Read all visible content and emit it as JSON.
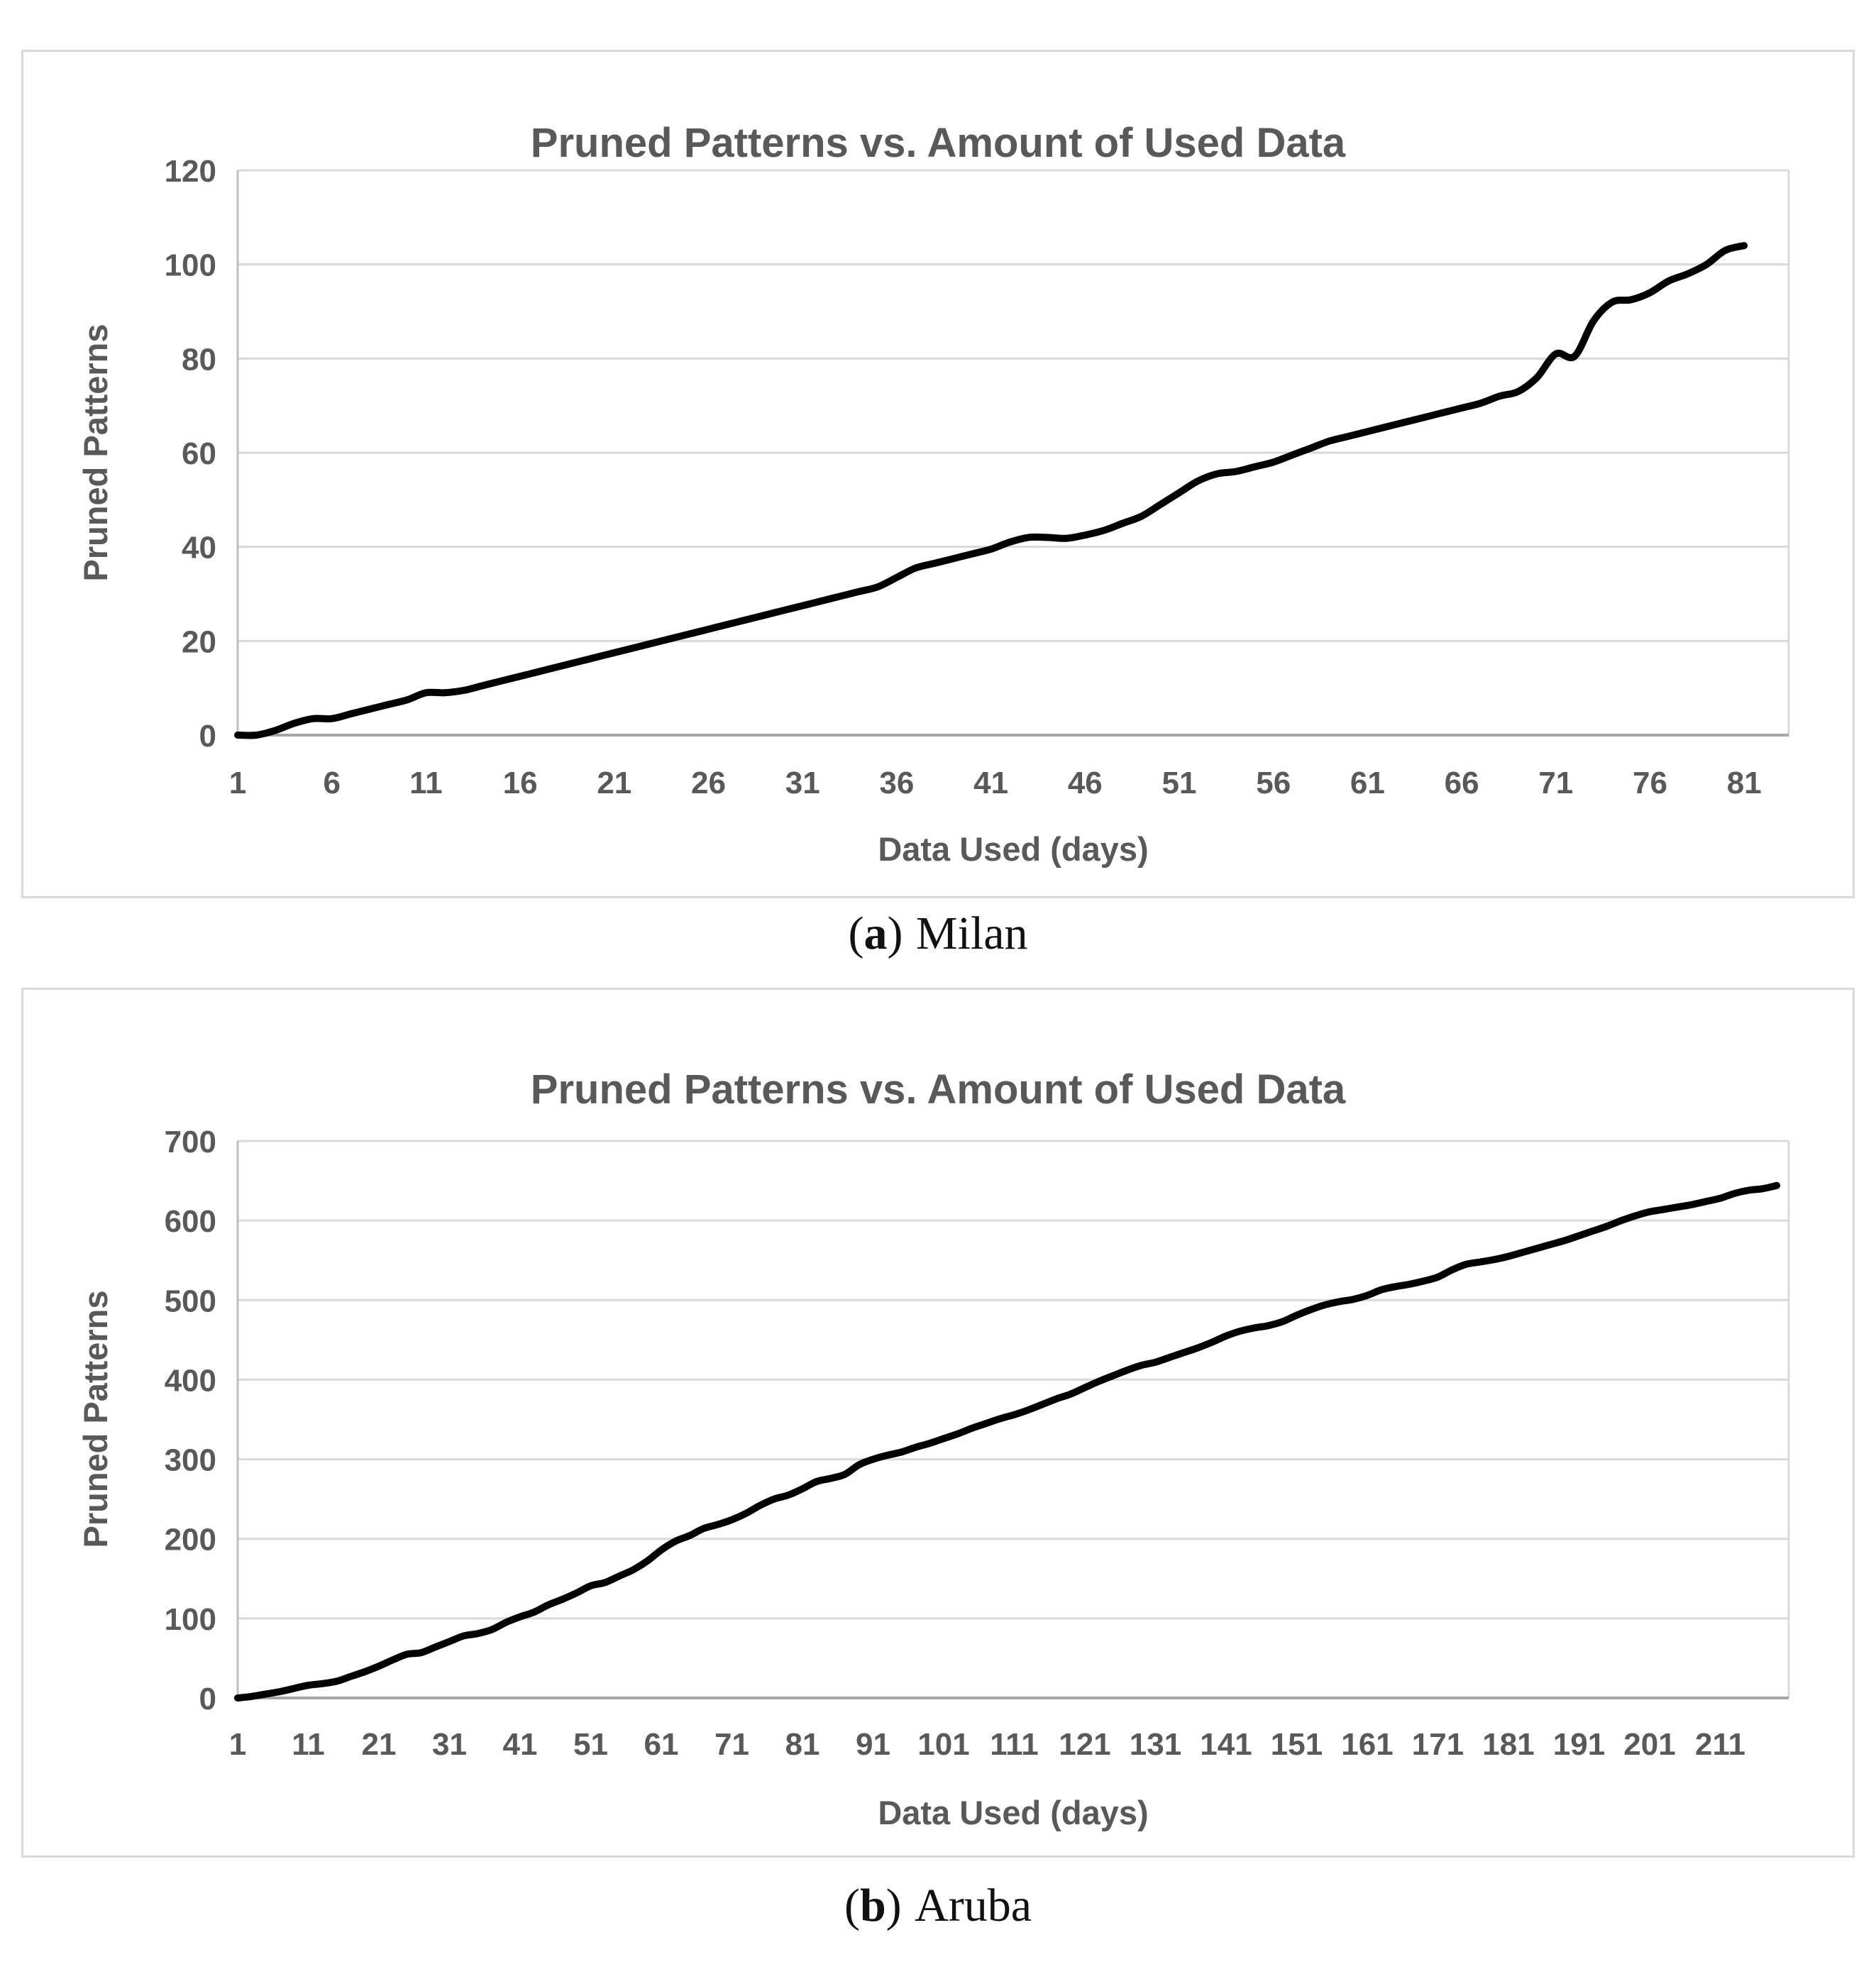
{
  "style": {
    "text_color": "#595959",
    "grid_color": "#D9D9D9",
    "axis_color": "#BFBFBF",
    "baseline_color": "#A6A6A6",
    "series_color": "#000000",
    "panel_border_color": "#D9D9D9"
  },
  "captions": [
    {
      "prefix": "(",
      "label": "a",
      "suffix": ")",
      "text": "Milan"
    },
    {
      "prefix": "(",
      "label": "b",
      "suffix": ")",
      "text": "Aruba"
    }
  ],
  "chart_data": [
    {
      "type": "line",
      "title": "Pruned Patterns vs. Amount of Used Data",
      "xlabel": "Data Used (days)",
      "ylabel": "Pruned Patterns",
      "legend": "none",
      "grid": "horizontal-major",
      "ylim": [
        0,
        120
      ],
      "ytick_step": 20,
      "xticks": [
        1,
        6,
        11,
        16,
        21,
        26,
        31,
        36,
        41,
        46,
        51,
        56,
        61,
        66,
        71,
        76,
        81
      ],
      "series": [
        {
          "name": "Milan",
          "x_start": 1,
          "x_step": 1,
          "values": [
            0,
            0,
            1,
            2.5,
            3.5,
            3.5,
            4.5,
            5.5,
            6.5,
            7.5,
            9,
            9,
            9.5,
            10.5,
            11.5,
            12.5,
            13.5,
            14.5,
            15.5,
            16.5,
            17.5,
            18.5,
            19.5,
            20.5,
            21.5,
            22.5,
            23.5,
            24.5,
            25.5,
            26.5,
            27.5,
            28.5,
            29.5,
            30.5,
            31.5,
            33.5,
            35.5,
            36.5,
            37.5,
            38.5,
            39.5,
            41,
            42,
            42,
            41.8,
            42.5,
            43.5,
            45,
            46.5,
            49,
            51.5,
            54,
            55.5,
            56,
            57,
            58,
            59.5,
            61,
            62.5,
            63.5,
            64.5,
            65.5,
            66.5,
            67.5,
            68.5,
            69.5,
            70.5,
            72,
            73,
            76,
            81,
            80.5,
            88,
            92,
            92.5,
            94,
            96.5,
            98,
            100,
            103,
            104
          ]
        }
      ]
    },
    {
      "type": "line",
      "title": "Pruned Patterns vs. Amount of Used Data",
      "xlabel": "Data Used (days)",
      "ylabel": "Pruned Patterns",
      "legend": "none",
      "grid": "horizontal-major",
      "ylim": [
        0,
        700
      ],
      "ytick_step": 100,
      "xticks": [
        1,
        11,
        21,
        31,
        41,
        51,
        61,
        71,
        81,
        91,
        101,
        111,
        121,
        131,
        141,
        151,
        161,
        171,
        181,
        191,
        201,
        211
      ],
      "series": [
        {
          "name": "Aruba",
          "x_start": 1,
          "x_step": 2,
          "values": [
            0,
            2,
            5,
            8,
            12,
            16,
            18,
            21,
            27,
            33,
            40,
            48,
            55,
            57,
            64,
            71,
            78,
            81,
            86,
            95,
            102,
            108,
            117,
            124,
            132,
            141,
            145,
            153,
            161,
            172,
            186,
            197,
            204,
            213,
            218,
            224,
            232,
            242,
            250,
            255,
            263,
            272,
            276,
            281,
            293,
            300,
            305,
            309,
            315,
            320,
            326,
            332,
            339,
            345,
            351,
            356,
            362,
            369,
            376,
            382,
            390,
            398,
            405,
            412,
            418,
            422,
            428,
            434,
            440,
            447,
            455,
            461,
            465,
            468,
            473,
            481,
            488,
            494,
            498,
            501,
            506,
            513,
            517,
            520,
            524,
            529,
            538,
            545,
            548,
            551,
            555,
            560,
            565,
            570,
            575,
            581,
            587,
            593,
            600,
            606,
            611,
            614,
            617,
            620,
            624,
            628,
            634,
            638,
            640,
            644
          ]
        }
      ]
    }
  ]
}
